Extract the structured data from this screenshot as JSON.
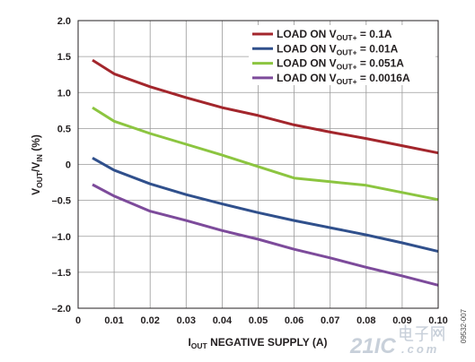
{
  "chart_data": {
    "type": "line",
    "xlabel": {
      "main": "I",
      "sub": "OUT",
      "rest": " NEGATIVE SUPPLY (A)"
    },
    "ylabel": {
      "v1": "V",
      "sub1": "OUT",
      "v2": "/V",
      "sub2": "IN",
      "rest": " (%)"
    },
    "xlim": [
      0,
      0.1
    ],
    "ylim": [
      -2.0,
      2.0
    ],
    "xticks": [
      0,
      0.01,
      0.02,
      0.03,
      0.04,
      0.05,
      0.06,
      0.07,
      0.08,
      0.09,
      0.1
    ],
    "xtick_labels": [
      "0",
      "0.01",
      "0.02",
      "0.03",
      "0.04",
      "0.05",
      "0.06",
      "0.07",
      "0.08",
      "0.09",
      "0.10"
    ],
    "yticks": [
      2.0,
      1.5,
      1.0,
      0.5,
      0,
      -0.5,
      -1.0,
      -1.5,
      -2.0
    ],
    "ytick_labels": [
      "2.0",
      "1.5",
      "1.0",
      "0.5",
      "0",
      "–0.5",
      "–1.0",
      "–1.5",
      "–2.0"
    ],
    "grid": true,
    "legend_position": "top-right",
    "x": [
      0.004,
      0.01,
      0.02,
      0.03,
      0.04,
      0.05,
      0.06,
      0.07,
      0.08,
      0.09,
      0.1
    ],
    "series": [
      {
        "legend": {
          "pre": "LOAD ON V",
          "sub": "OUT+",
          "post": " = 0.1A"
        },
        "color": "#a3262c",
        "values": [
          1.45,
          1.26,
          1.08,
          0.93,
          0.79,
          0.68,
          0.55,
          0.45,
          0.36,
          0.26,
          0.16
        ]
      },
      {
        "legend": {
          "pre": "LOAD ON V",
          "sub": "OUT+",
          "post": " = 0.01A"
        },
        "color": "#30508c",
        "values": [
          0.09,
          -0.08,
          -0.27,
          -0.42,
          -0.55,
          -0.67,
          -0.78,
          -0.88,
          -0.98,
          -1.09,
          -1.21
        ]
      },
      {
        "legend": {
          "pre": "LOAD ON V",
          "sub": "OUT+",
          "post": " = 0.051A"
        },
        "color": "#8cc540",
        "values": [
          0.79,
          0.6,
          0.43,
          0.28,
          0.13,
          -0.03,
          -0.19,
          -0.24,
          -0.29,
          -0.39,
          -0.49
        ]
      },
      {
        "legend": {
          "pre": "LOAD ON V",
          "sub": "OUT+",
          "post": " = 0.0016A"
        },
        "color": "#7d4b9b",
        "values": [
          -0.28,
          -0.44,
          -0.65,
          -0.78,
          -0.92,
          -1.04,
          -1.18,
          -1.3,
          -1.43,
          -1.55,
          -1.68
        ]
      }
    ]
  },
  "watermark": {
    "brand": "21IC",
    "cn": "电子网",
    "suffix": ".com"
  },
  "figure_code": "09532-007"
}
